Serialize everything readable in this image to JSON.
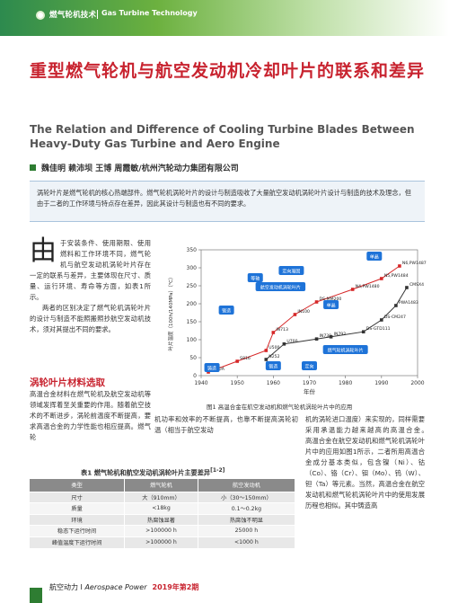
{
  "header": {
    "journal_cn": "燃气轮机技术",
    "journal_en": "Gas Turbine Technology"
  },
  "title": {
    "cn": "重型燃气轮机与航空发动机冷却叶片的联系和差异",
    "en": "The Relation and Difference of Cooling Turbine Blades Between Heavy-Duty Gas Turbine and Aero Engine"
  },
  "authors": "魏佳明  赖沛坝  王博  周霞敏/杭州汽轮动力集团有限公司",
  "abstract": "涡轮叶片是燃气轮机的核心热端部件。燃气轮机涡轮叶片的设计与制造吸收了大量航空发动机涡轮叶片设计与制造的技术及理念，但由于二者的工作环境与特点存在差异，因此其设计与制造也有不同的要求。",
  "intro": {
    "dropcap": "由",
    "p1": "于安装条件、使用期限、使用燃料和工作环境不同，燃气轮机与航空发动机涡轮叶片存在一定的联系与差异，主要体现在尺寸、质量、运行环境、寿命等方面，如表1所示。",
    "p2": "两者的区别决定了燃气轮机涡轮叶片的设计与制造不能照搬照抄航空发动机技术，须对其提出不同的要求。"
  },
  "section": {
    "title": "涡轮叶片材料选取",
    "body": "高温合金材料在燃气轮机及航空发动机等领域发挥着至关重要的作用。随着航空技术的不断进步，涡轮前温度不断提高，要求高温合金的力学性能也相应提高。燃气轮"
  },
  "middle_text": "机功率和效率的不断提高，也靠不断提高涡轮初温（相当于航空发动",
  "right_text": "机的涡轮进口温度）来实现的，同样需要采用承温能力越来越高的高温合金。　　高温合金在航空发动机和燃气轮机涡轮叶片中的应用如图1所示，二者所用高温合金成分基本类似，包含镍（Ni）、钴（Co）、铬（Cr）、钼（Mo）、钨（W）、钽（Ta）等元素。当然，高温合金在航空发动机和燃气轮机涡轮叶片中的使用发展历程也相似。其中铸造高",
  "figure": {
    "caption": "图1  高温合金在航空发动机和燃气轮机涡轮叶片中的应用",
    "ylabel": "叶片温度（100h/140MPa）（℃）",
    "xlabel": "年份"
  },
  "chart_data": {
    "type": "scatter",
    "x_ticks": [
      "1940",
      "1950",
      "1960",
      "1970",
      "1980",
      "1990",
      "2000"
    ],
    "y_ticks": [
      "0",
      "50",
      "100",
      "150",
      "200",
      "250",
      "300",
      "350"
    ],
    "xlim": [
      1940,
      2000
    ],
    "ylim": [
      0,
      350
    ],
    "series": [
      {
        "name": "航空发动机涡轮叶片",
        "color": "#d62728",
        "points": [
          {
            "x": 1942,
            "y": 10,
            "label": "S780A"
          },
          {
            "x": 1950,
            "y": 40,
            "label": "S816"
          },
          {
            "x": 1958,
            "y": 70,
            "label": "U500"
          },
          {
            "x": 1960,
            "y": 120,
            "label": "IN713"
          },
          {
            "x": 1966,
            "y": 170,
            "label": "IN100"
          },
          {
            "x": 1972,
            "y": 205,
            "label": "DS-MM200"
          },
          {
            "x": 1982,
            "y": 240,
            "label": "N4,PW1480"
          },
          {
            "x": 1990,
            "y": 270,
            "label": "N5,PW1484"
          },
          {
            "x": 1995,
            "y": 305,
            "label": "N6,PW1487"
          }
        ]
      },
      {
        "name": "燃气轮机涡轮叶片",
        "color": "#333333",
        "points": [
          {
            "x": 1958,
            "y": 45,
            "label": "N252"
          },
          {
            "x": 1963,
            "y": 88,
            "label": "U700"
          },
          {
            "x": 1972,
            "y": 102,
            "label": "IN738"
          },
          {
            "x": 1976,
            "y": 108,
            "label": "IN792"
          },
          {
            "x": 1985,
            "y": 122,
            "label": "DS-GTD111"
          },
          {
            "x": 1990,
            "y": 155,
            "label": "DS-CM247"
          },
          {
            "x": 1994,
            "y": 195,
            "label": "PWA1483"
          },
          {
            "x": 1997,
            "y": 245,
            "label": "CMSX4"
          }
        ]
      }
    ],
    "annotations": [
      {
        "text": "铸造",
        "x": 1943,
        "y": 20
      },
      {
        "text": "锻造",
        "x": 1960,
        "y": 25
      },
      {
        "text": "定向",
        "x": 1970,
        "y": 25
      },
      {
        "text": "单晶",
        "x": 1988,
        "y": 330
      },
      {
        "text": "锻造",
        "x": 1947,
        "y": 180
      },
      {
        "text": "等轴",
        "x": 1955,
        "y": 270
      },
      {
        "text": "定向凝固",
        "x": 1965,
        "y": 290
      },
      {
        "text": "航空发动机涡轮叶片",
        "x": 1962,
        "y": 245
      },
      {
        "text": "燃气轮机涡轮叶片",
        "x": 1980,
        "y": 70
      },
      {
        "text": "单晶",
        "x": 1976,
        "y": 195
      }
    ]
  },
  "table": {
    "caption": "表1  燃气轮机和航空发动机涡轮叶片主要差异",
    "caption_ref": "[1-2]",
    "headers": [
      "类型",
      "燃气轮机",
      "航空发动机"
    ],
    "rows": [
      [
        "尺寸",
        "大（910mm）",
        "小（30～150mm）"
      ],
      [
        "质量",
        "<18kg",
        "0.1～0.2kg"
      ],
      [
        "环境",
        "热腐蚀显著",
        "热腐蚀不明显"
      ],
      [
        "稳态下运行时间",
        ">100000 h",
        "25000 h"
      ],
      [
        "峰值温度下运行时间",
        ">100000 h",
        "<1000 h"
      ]
    ]
  },
  "footer": {
    "journal_cn": "航空动力",
    "journal_en": "Aerospace Power",
    "issue": "2019年第2期"
  }
}
